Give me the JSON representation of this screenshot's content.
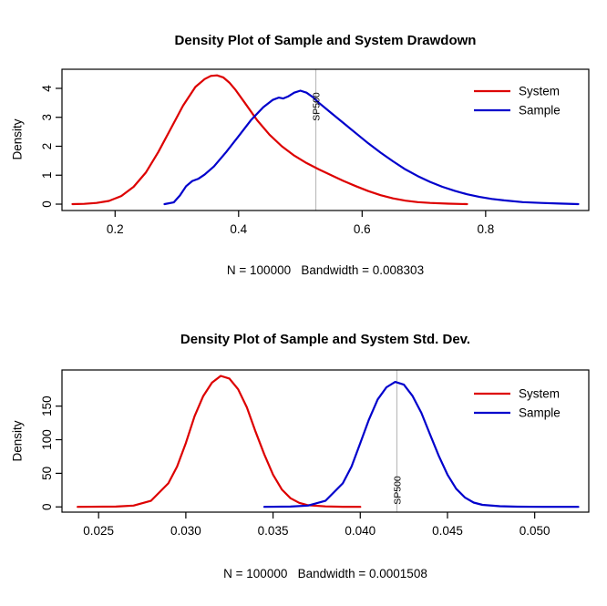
{
  "page": {
    "background": "#ffffff"
  },
  "chart_data": [
    {
      "type": "line",
      "title": "Density Plot of Sample and System Drawdown",
      "subtitle": "N = 100000   Bandwidth = 0.008303",
      "ylabel": "Density",
      "xlim": [
        0.114,
        0.967
      ],
      "ylim": [
        -0.22,
        4.66
      ],
      "grid": false,
      "legend_position": "top-right",
      "xticks": {
        "values": [
          0.2,
          0.4,
          0.6,
          0.8
        ],
        "labels": [
          "0.2",
          "0.4",
          "0.6",
          "0.8"
        ]
      },
      "yticks": {
        "values": [
          0,
          1,
          2,
          3,
          4
        ],
        "labels": [
          "0",
          "1",
          "2",
          "3",
          "4"
        ]
      },
      "vline": {
        "x": 0.525,
        "label": "SP500",
        "line_color": "#bdbdbd",
        "label_color": "#c9c9c9"
      },
      "series": [
        {
          "name": "System",
          "color": "#dd0000",
          "points": [
            [
              0.131,
              0.0
            ],
            [
              0.15,
              0.01
            ],
            [
              0.17,
              0.04
            ],
            [
              0.19,
              0.11
            ],
            [
              0.21,
              0.28
            ],
            [
              0.23,
              0.6
            ],
            [
              0.25,
              1.1
            ],
            [
              0.27,
              1.8
            ],
            [
              0.29,
              2.6
            ],
            [
              0.31,
              3.4
            ],
            [
              0.33,
              4.05
            ],
            [
              0.345,
              4.32
            ],
            [
              0.355,
              4.43
            ],
            [
              0.365,
              4.45
            ],
            [
              0.375,
              4.38
            ],
            [
              0.385,
              4.2
            ],
            [
              0.395,
              3.95
            ],
            [
              0.41,
              3.5
            ],
            [
              0.43,
              2.9
            ],
            [
              0.45,
              2.4
            ],
            [
              0.47,
              2.0
            ],
            [
              0.49,
              1.68
            ],
            [
              0.51,
              1.42
            ],
            [
              0.53,
              1.2
            ],
            [
              0.55,
              1.0
            ],
            [
              0.57,
              0.8
            ],
            [
              0.59,
              0.62
            ],
            [
              0.61,
              0.45
            ],
            [
              0.63,
              0.31
            ],
            [
              0.65,
              0.2
            ],
            [
              0.67,
              0.12
            ],
            [
              0.69,
              0.07
            ],
            [
              0.71,
              0.04
            ],
            [
              0.74,
              0.015
            ],
            [
              0.77,
              0.0
            ]
          ]
        },
        {
          "name": "Sample",
          "color": "#0000cc",
          "points": [
            [
              0.28,
              0.0
            ],
            [
              0.295,
              0.06
            ],
            [
              0.305,
              0.3
            ],
            [
              0.315,
              0.62
            ],
            [
              0.325,
              0.8
            ],
            [
              0.335,
              0.88
            ],
            [
              0.345,
              1.02
            ],
            [
              0.36,
              1.3
            ],
            [
              0.38,
              1.8
            ],
            [
              0.4,
              2.35
            ],
            [
              0.42,
              2.9
            ],
            [
              0.44,
              3.35
            ],
            [
              0.455,
              3.6
            ],
            [
              0.465,
              3.68
            ],
            [
              0.472,
              3.65
            ],
            [
              0.48,
              3.72
            ],
            [
              0.49,
              3.85
            ],
            [
              0.5,
              3.92
            ],
            [
              0.51,
              3.85
            ],
            [
              0.52,
              3.7
            ],
            [
              0.53,
              3.5
            ],
            [
              0.55,
              3.15
            ],
            [
              0.57,
              2.8
            ],
            [
              0.59,
              2.45
            ],
            [
              0.61,
              2.1
            ],
            [
              0.63,
              1.78
            ],
            [
              0.65,
              1.48
            ],
            [
              0.67,
              1.2
            ],
            [
              0.69,
              0.97
            ],
            [
              0.71,
              0.77
            ],
            [
              0.73,
              0.6
            ],
            [
              0.75,
              0.46
            ],
            [
              0.77,
              0.34
            ],
            [
              0.79,
              0.25
            ],
            [
              0.81,
              0.18
            ],
            [
              0.83,
              0.13
            ],
            [
              0.86,
              0.07
            ],
            [
              0.89,
              0.04
            ],
            [
              0.92,
              0.02
            ],
            [
              0.95,
              0.0
            ]
          ]
        }
      ]
    },
    {
      "type": "line",
      "title": "Density Plot of Sample and System Std. Dev.",
      "subtitle": "N = 100000   Bandwidth = 0.0001508",
      "ylabel": "Density",
      "xlim": [
        0.0229,
        0.0531
      ],
      "ylim": [
        -7.8,
        203.8
      ],
      "grid": false,
      "legend_position": "top-right",
      "xticks": {
        "values": [
          0.025,
          0.03,
          0.035,
          0.04,
          0.045,
          0.05
        ],
        "labels": [
          "0.025",
          "0.030",
          "0.035",
          "0.040",
          "0.045",
          "0.050"
        ]
      },
      "yticks": {
        "values": [
          0,
          50,
          100,
          150
        ],
        "labels": [
          "0",
          "50",
          "100",
          "150"
        ]
      },
      "vline": {
        "x": 0.0421,
        "label": "SP500",
        "line_color": "#bdbdbd",
        "label_color": "#c9c9c9"
      },
      "series": [
        {
          "name": "System",
          "color": "#dd0000",
          "points": [
            [
              0.0238,
              0
            ],
            [
              0.026,
              0.5
            ],
            [
              0.027,
              2
            ],
            [
              0.028,
              9
            ],
            [
              0.029,
              35
            ],
            [
              0.0295,
              60
            ],
            [
              0.03,
              95
            ],
            [
              0.0305,
              135
            ],
            [
              0.031,
              165
            ],
            [
              0.0315,
              185
            ],
            [
              0.032,
              195
            ],
            [
              0.0325,
              191
            ],
            [
              0.033,
              175
            ],
            [
              0.0335,
              148
            ],
            [
              0.034,
              112
            ],
            [
              0.0345,
              78
            ],
            [
              0.035,
              48
            ],
            [
              0.0355,
              26
            ],
            [
              0.036,
              13
            ],
            [
              0.0365,
              6
            ],
            [
              0.037,
              2.5
            ],
            [
              0.038,
              0.8
            ],
            [
              0.039,
              0.2
            ],
            [
              0.04,
              0
            ]
          ]
        },
        {
          "name": "Sample",
          "color": "#0000cc",
          "points": [
            [
              0.0345,
              0
            ],
            [
              0.036,
              0.5
            ],
            [
              0.037,
              2
            ],
            [
              0.038,
              9
            ],
            [
              0.039,
              35
            ],
            [
              0.0395,
              60
            ],
            [
              0.04,
              95
            ],
            [
              0.0405,
              130
            ],
            [
              0.041,
              160
            ],
            [
              0.0415,
              178
            ],
            [
              0.042,
              186
            ],
            [
              0.0425,
              182
            ],
            [
              0.043,
              165
            ],
            [
              0.0435,
              140
            ],
            [
              0.044,
              108
            ],
            [
              0.0445,
              76
            ],
            [
              0.045,
              48
            ],
            [
              0.0455,
              27
            ],
            [
              0.046,
              14
            ],
            [
              0.0465,
              6.5
            ],
            [
              0.047,
              3
            ],
            [
              0.048,
              1
            ],
            [
              0.049,
              0.3
            ],
            [
              0.0505,
              0.05
            ],
            [
              0.0525,
              0
            ]
          ]
        }
      ]
    }
  ]
}
